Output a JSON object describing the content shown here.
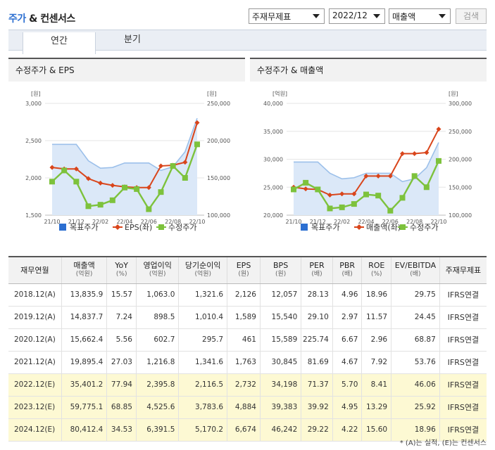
{
  "header": {
    "title_part1": "주가",
    "title_part2": "& 컨센서스",
    "select_type": "주재무제표",
    "select_period": "2022/12",
    "select_metric": "매출액",
    "search_label": "검색"
  },
  "tabs": [
    {
      "label": "연간"
    },
    {
      "label": "분기"
    }
  ],
  "colors": {
    "target_price": "#9cc0ea",
    "line2": "#d9451b",
    "adj_price": "#7dc23c"
  },
  "chart_data": [
    {
      "type": "line",
      "title": "수정주가 & EPS",
      "left_unit": "[원]",
      "right_unit": "[원]",
      "categories": [
        "21/10",
        "",
        "21/12",
        "",
        "22/02",
        "",
        "22/04",
        "",
        "22/06",
        "",
        "22/08",
        "",
        "22/10"
      ],
      "left_axis": {
        "min": 1500,
        "max": 3000,
        "ticks": [
          "1,500",
          "2,000",
          "2,500",
          "3,000"
        ]
      },
      "right_axis": {
        "min": 100000,
        "max": 250000,
        "ticks": [
          "100,000",
          "150,000",
          "200,000",
          "250,000"
        ]
      },
      "series": [
        {
          "name": "목표주가",
          "axis": "left",
          "kind": "area",
          "values": [
            2450,
            2450,
            2450,
            2230,
            2130,
            2140,
            2200,
            2200,
            2200,
            2100,
            2150,
            2350,
            2800
          ]
        },
        {
          "name": "EPS(좌)",
          "axis": "left",
          "kind": "line",
          "values": [
            2140,
            2120,
            2120,
            1990,
            1930,
            1900,
            1880,
            1870,
            1870,
            2160,
            2170,
            2210,
            2740
          ]
        },
        {
          "name": "수정주가",
          "axis": "right",
          "kind": "line",
          "values": [
            145000,
            160000,
            145000,
            112000,
            114000,
            120000,
            137000,
            135000,
            108000,
            131000,
            166000,
            150000,
            195000
          ]
        }
      ],
      "legend": [
        "목표주가",
        "EPS(좌)",
        "수정주가"
      ]
    },
    {
      "type": "line",
      "title": "수정주가 & 매출액",
      "left_unit": "[억원]",
      "right_unit": "[원]",
      "categories": [
        "21/10",
        "",
        "21/12",
        "",
        "22/02",
        "",
        "22/04",
        "",
        "22/06",
        "",
        "22/08",
        "",
        "22/10"
      ],
      "left_axis": {
        "min": 20000,
        "max": 40000,
        "ticks": [
          "20,000",
          "25,000",
          "30,000",
          "35,000",
          "40,000"
        ]
      },
      "right_axis": {
        "min": 100000,
        "max": 300000,
        "ticks": [
          "100,000",
          "150,000",
          "200,000",
          "250,000",
          "300,000"
        ]
      },
      "series": [
        {
          "name": "목표주가",
          "axis": "right",
          "kind": "area",
          "values": [
            195000,
            195000,
            195000,
            175000,
            165000,
            167000,
            175000,
            175000,
            175000,
            160000,
            165000,
            185000,
            230000
          ]
        },
        {
          "name": "매출액(좌)",
          "axis": "left",
          "kind": "line",
          "values": [
            25000,
            24700,
            24600,
            23600,
            23800,
            23800,
            27000,
            27000,
            27000,
            31000,
            31000,
            31200,
            35400
          ]
        },
        {
          "name": "수정주가",
          "axis": "right",
          "kind": "line",
          "values": [
            146000,
            158000,
            146000,
            112000,
            114000,
            120000,
            137000,
            135000,
            108000,
            131000,
            170000,
            150000,
            197000
          ]
        }
      ],
      "legend": [
        "목표주가",
        "매출액(좌)",
        "수정주가"
      ]
    },
    {
      "type": "table",
      "columns": [
        {
          "name": "재무연월",
          "unit": ""
        },
        {
          "name": "매출액",
          "unit": "(억원)"
        },
        {
          "name": "YoY",
          "unit": "(%)"
        },
        {
          "name": "영업이익",
          "unit": "(억원)"
        },
        {
          "name": "당기순이익",
          "unit": "(억원)"
        },
        {
          "name": "EPS",
          "unit": "(원)"
        },
        {
          "name": "BPS",
          "unit": "(원)"
        },
        {
          "name": "PER",
          "unit": "(배)"
        },
        {
          "name": "PBR",
          "unit": "(배)"
        },
        {
          "name": "ROE",
          "unit": "(%)"
        },
        {
          "name": "EV/EBITDA",
          "unit": "(배)"
        },
        {
          "name": "주재무제표",
          "unit": ""
        }
      ],
      "rows": [
        {
          "estimate": false,
          "cells": [
            "2018.12(A)",
            "13,835.9",
            "15.57",
            "1,063.0",
            "1,321.6",
            "2,126",
            "12,057",
            "28.13",
            "4.96",
            "18.96",
            "29.75",
            "IFRS연결"
          ]
        },
        {
          "estimate": false,
          "cells": [
            "2019.12(A)",
            "14,837.7",
            "7.24",
            "898.5",
            "1,010.4",
            "1,589",
            "15,540",
            "29.10",
            "2.97",
            "11.57",
            "24.45",
            "IFRS연결"
          ]
        },
        {
          "estimate": false,
          "cells": [
            "2020.12(A)",
            "15,662.4",
            "5.56",
            "602.7",
            "295.7",
            "461",
            "15,589",
            "225.74",
            "6.67",
            "2.96",
            "68.87",
            "IFRS연결"
          ]
        },
        {
          "estimate": false,
          "cells": [
            "2021.12(A)",
            "19,895.4",
            "27.03",
            "1,216.8",
            "1,341.6",
            "1,763",
            "30,845",
            "81.69",
            "4.67",
            "7.92",
            "53.76",
            "IFRS연결"
          ]
        },
        {
          "estimate": true,
          "cells": [
            "2022.12(E)",
            "35,401.2",
            "77.94",
            "2,395.8",
            "2,116.5",
            "2,732",
            "34,198",
            "71.37",
            "5.70",
            "8.41",
            "46.06",
            "IFRS연결"
          ]
        },
        {
          "estimate": true,
          "cells": [
            "2023.12(E)",
            "59,775.1",
            "68.85",
            "4,525.6",
            "3,783.6",
            "4,884",
            "39,383",
            "39.92",
            "4.95",
            "13.29",
            "25.92",
            "IFRS연결"
          ]
        },
        {
          "estimate": true,
          "cells": [
            "2024.12(E)",
            "80,412.4",
            "34.53",
            "6,391.5",
            "5,170.2",
            "6,674",
            "46,242",
            "29.22",
            "4.22",
            "15.60",
            "18.96",
            "IFRS연결"
          ]
        }
      ]
    }
  ],
  "footnote": "* (A)는 실적, (E)는 컨센서스"
}
